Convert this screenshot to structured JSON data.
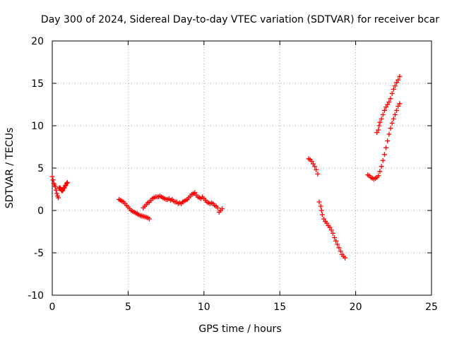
{
  "chart_data": {
    "type": "scatter",
    "title": "Day 300 of 2024, Sidereal Day-to-day VTEC variation (SDTVAR) for receiver bcar",
    "xlabel": "GPS time / hours",
    "ylabel": "SDTVAR / TECUs",
    "xlim": [
      0,
      25
    ],
    "ylim": [
      -10,
      20
    ],
    "xticks": [
      "0",
      "5",
      "10",
      "15",
      "20",
      "25"
    ],
    "yticks": [
      "-10",
      "-5",
      "0",
      "5",
      "10",
      "15",
      "20"
    ],
    "grid": true,
    "legend": "none",
    "marker": "+",
    "color": "#ff0000",
    "series": [
      {
        "points": [
          [
            0.0,
            4.0
          ],
          [
            0.05,
            3.6
          ],
          [
            0.1,
            3.2
          ],
          [
            0.15,
            3.0
          ],
          [
            0.2,
            2.8
          ],
          [
            0.25,
            2.4
          ],
          [
            0.3,
            2.0
          ],
          [
            0.35,
            1.7
          ],
          [
            0.4,
            1.5
          ],
          [
            0.45,
            2.6
          ],
          [
            0.5,
            2.7
          ],
          [
            0.55,
            2.6
          ],
          [
            0.6,
            2.4
          ],
          [
            0.65,
            2.3
          ],
          [
            0.7,
            2.4
          ],
          [
            0.75,
            2.6
          ],
          [
            0.8,
            2.7
          ],
          [
            0.85,
            2.9
          ],
          [
            0.9,
            3.0
          ],
          [
            0.95,
            3.2
          ],
          [
            1.0,
            3.3
          ]
        ]
      },
      {
        "points": [
          [
            4.4,
            1.3
          ],
          [
            4.5,
            1.2
          ],
          [
            4.6,
            1.1
          ],
          [
            4.7,
            1.0
          ],
          [
            4.8,
            0.8
          ],
          [
            4.9,
            0.6
          ],
          [
            5.0,
            0.4
          ],
          [
            5.1,
            0.2
          ],
          [
            5.2,
            0.0
          ],
          [
            5.3,
            -0.1
          ],
          [
            5.4,
            -0.2
          ],
          [
            5.5,
            -0.3
          ],
          [
            5.6,
            -0.4
          ],
          [
            5.7,
            -0.5
          ],
          [
            5.8,
            -0.6
          ],
          [
            5.9,
            -0.65
          ],
          [
            6.0,
            -0.7
          ],
          [
            6.1,
            -0.75
          ],
          [
            6.2,
            -0.8
          ],
          [
            6.3,
            -0.85
          ],
          [
            6.4,
            -1.0
          ]
        ]
      },
      {
        "points": [
          [
            6.0,
            0.3
          ],
          [
            6.1,
            0.5
          ],
          [
            6.2,
            0.7
          ],
          [
            6.3,
            0.9
          ],
          [
            6.4,
            1.0
          ],
          [
            6.5,
            1.2
          ],
          [
            6.6,
            1.4
          ],
          [
            6.7,
            1.5
          ],
          [
            6.8,
            1.6
          ],
          [
            6.9,
            1.6
          ],
          [
            7.0,
            1.6
          ],
          [
            7.1,
            1.7
          ],
          [
            7.2,
            1.6
          ],
          [
            7.3,
            1.5
          ],
          [
            7.4,
            1.4
          ],
          [
            7.5,
            1.3
          ],
          [
            7.6,
            1.3
          ],
          [
            7.7,
            1.4
          ],
          [
            7.8,
            1.2
          ],
          [
            7.9,
            1.3
          ],
          [
            8.0,
            1.1
          ],
          [
            8.1,
            1.0
          ],
          [
            8.2,
            1.0
          ],
          [
            8.3,
            0.8
          ],
          [
            8.4,
            0.9
          ],
          [
            8.5,
            0.8
          ],
          [
            8.6,
            1.0
          ],
          [
            8.7,
            1.1
          ],
          [
            8.8,
            1.2
          ],
          [
            8.9,
            1.3
          ],
          [
            9.0,
            1.5
          ],
          [
            9.1,
            1.7
          ],
          [
            9.2,
            1.9
          ],
          [
            9.3,
            2.0
          ],
          [
            9.4,
            2.1
          ],
          [
            9.5,
            1.8
          ],
          [
            9.6,
            1.6
          ],
          [
            9.7,
            1.5
          ],
          [
            9.8,
            1.4
          ],
          [
            9.9,
            1.6
          ],
          [
            10.0,
            1.4
          ],
          [
            10.1,
            1.2
          ],
          [
            10.2,
            1.0
          ],
          [
            10.3,
            0.9
          ],
          [
            10.4,
            0.8
          ],
          [
            10.5,
            0.9
          ],
          [
            10.6,
            0.8
          ],
          [
            10.7,
            0.6
          ],
          [
            10.8,
            0.5
          ],
          [
            10.9,
            0.3
          ],
          [
            11.0,
            -0.2
          ],
          [
            11.1,
            0.0
          ],
          [
            11.2,
            0.2
          ]
        ]
      },
      {
        "points": [
          [
            16.9,
            6.1
          ],
          [
            17.0,
            6.0
          ],
          [
            17.1,
            5.8
          ],
          [
            17.2,
            5.5
          ],
          [
            17.3,
            5.2
          ],
          [
            17.4,
            4.8
          ],
          [
            17.5,
            4.3
          ]
        ]
      },
      {
        "points": [
          [
            17.6,
            1.0
          ],
          [
            17.7,
            0.5
          ],
          [
            17.75,
            0.0
          ],
          [
            17.8,
            -0.5
          ],
          [
            17.9,
            -1.0
          ],
          [
            18.0,
            -1.3
          ],
          [
            18.1,
            -1.5
          ],
          [
            18.2,
            -1.8
          ],
          [
            18.3,
            -2.0
          ],
          [
            18.4,
            -2.3
          ],
          [
            18.5,
            -2.7
          ],
          [
            18.6,
            -3.2
          ],
          [
            18.7,
            -3.6
          ],
          [
            18.8,
            -4.0
          ],
          [
            18.9,
            -4.4
          ],
          [
            19.0,
            -4.8
          ],
          [
            19.1,
            -5.2
          ],
          [
            19.2,
            -5.4
          ],
          [
            19.3,
            -5.6
          ]
        ]
      },
      {
        "points": [
          [
            20.8,
            4.2
          ],
          [
            20.9,
            4.1
          ],
          [
            21.0,
            3.9
          ],
          [
            21.1,
            3.8
          ],
          [
            21.2,
            3.7
          ],
          [
            21.3,
            3.8
          ],
          [
            21.4,
            3.9
          ],
          [
            21.5,
            4.1
          ],
          [
            21.6,
            4.6
          ],
          [
            21.7,
            5.2
          ],
          [
            21.8,
            5.9
          ],
          [
            21.9,
            6.6
          ],
          [
            22.0,
            7.4
          ],
          [
            22.1,
            8.2
          ],
          [
            22.2,
            9.0
          ],
          [
            22.3,
            9.7
          ],
          [
            22.4,
            10.3
          ],
          [
            22.5,
            10.8
          ],
          [
            22.6,
            11.3
          ],
          [
            22.7,
            11.8
          ],
          [
            22.8,
            12.3
          ],
          [
            22.9,
            12.6
          ]
        ]
      },
      {
        "points": [
          [
            21.4,
            9.2
          ],
          [
            21.5,
            9.5
          ],
          [
            21.55,
            10.0
          ],
          [
            21.6,
            10.4
          ],
          [
            21.7,
            10.8
          ],
          [
            21.8,
            11.3
          ],
          [
            21.9,
            11.8
          ],
          [
            22.0,
            12.2
          ],
          [
            22.1,
            12.5
          ],
          [
            22.2,
            12.8
          ],
          [
            22.3,
            13.2
          ],
          [
            22.4,
            13.8
          ],
          [
            22.5,
            14.3
          ],
          [
            22.6,
            14.7
          ],
          [
            22.7,
            15.1
          ],
          [
            22.8,
            15.4
          ],
          [
            22.9,
            15.8
          ]
        ]
      }
    ]
  }
}
